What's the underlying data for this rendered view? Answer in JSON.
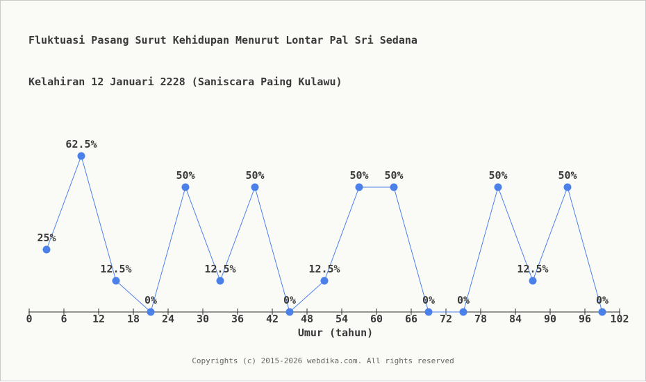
{
  "page": {
    "background": "#fafaf7",
    "border_color": "#c9c9c9"
  },
  "chart_data": {
    "type": "line",
    "title": "Fluktuasi Pasang Surut Kehidupan Menurut Lontar Pal Sri Sedana",
    "subtitle": "Kelahiran 12 Januari 2228 (Saniscara Paing Kulawu)",
    "xlabel": "Umur (tahun)",
    "ylabel": "",
    "x": [
      3,
      9,
      15,
      21,
      27,
      33,
      39,
      45,
      51,
      57,
      63,
      69,
      75,
      81,
      87,
      93,
      99
    ],
    "values": [
      25,
      62.5,
      12.5,
      0,
      50,
      12.5,
      50,
      0,
      12.5,
      50,
      50,
      0,
      0,
      50,
      12.5,
      50,
      0
    ],
    "point_labels": [
      "25%",
      "62.5%",
      "12.5%",
      "0%",
      "50%",
      "12.5%",
      "50%",
      "0%",
      "12.5%",
      "50%",
      "50%",
      "0%",
      "0%",
      "50%",
      "12.5%",
      "50%",
      "0%"
    ],
    "x_ticks": [
      0,
      6,
      12,
      18,
      24,
      30,
      36,
      42,
      48,
      54,
      60,
      66,
      72,
      78,
      84,
      90,
      96,
      102
    ],
    "xlim": [
      0,
      102
    ],
    "ylim": [
      0,
      100
    ],
    "grid": false,
    "legend": false,
    "colors": {
      "line": "#4a80e8",
      "marker": "#4a80e8",
      "axis": "#2e2e2e",
      "text": "#3a3a3a"
    }
  },
  "footer": {
    "copyright": "Copyrights (c) 2015-2026 webdika.com. All rights reserved"
  }
}
